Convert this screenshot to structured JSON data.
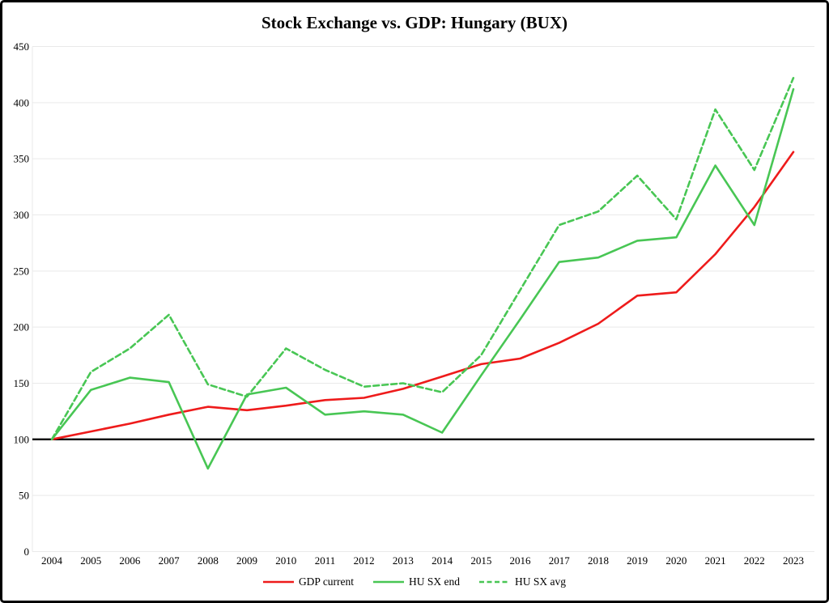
{
  "colors": {
    "red": "#ee1b1b",
    "green": "#48c654",
    "gridline": "#e9e9e9",
    "baseline": "#000000",
    "text": "#000000"
  },
  "chart_data": {
    "type": "line",
    "title": "Stock Exchange vs. GDP: Hungary (BUX)",
    "x": [
      2004,
      2005,
      2006,
      2007,
      2008,
      2009,
      2010,
      2011,
      2012,
      2013,
      2014,
      2015,
      2016,
      2017,
      2018,
      2019,
      2020,
      2021,
      2022,
      2023
    ],
    "y_ticks": [
      0,
      50,
      100,
      150,
      200,
      250,
      300,
      350,
      400,
      450
    ],
    "ylim": [
      0,
      450
    ],
    "baseline_y": 100,
    "grid": true,
    "legend_position": "bottom",
    "xlabel": "",
    "ylabel": "",
    "series": [
      {
        "name": "GDP current",
        "color_key": "red",
        "style": "solid",
        "values": [
          100,
          107,
          114,
          122,
          129,
          126,
          130,
          135,
          137,
          145,
          156,
          167,
          172,
          186,
          203,
          228,
          231,
          265,
          307,
          356
        ]
      },
      {
        "name": "HU SX end",
        "color_key": "green",
        "style": "solid",
        "values": [
          100,
          144,
          155,
          151,
          74,
          140,
          146,
          122,
          125,
          122,
          106,
          157,
          207,
          258,
          262,
          277,
          280,
          344,
          291,
          412
        ]
      },
      {
        "name": "HU SX avg",
        "color_key": "green",
        "style": "dashed",
        "values": [
          100,
          160,
          181,
          211,
          149,
          138,
          181,
          162,
          147,
          150,
          142,
          175,
          233,
          291,
          303,
          335,
          296,
          394,
          340,
          422
        ]
      }
    ]
  }
}
